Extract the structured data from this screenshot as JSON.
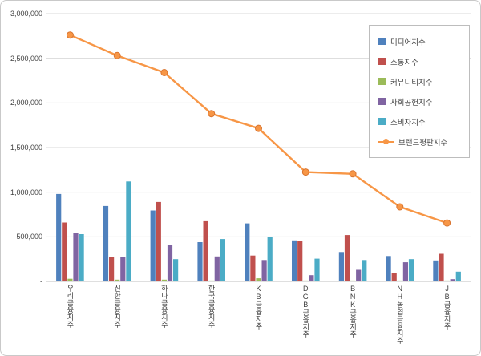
{
  "chart_data": {
    "type": "bar",
    "subtype": "clustered-bars-with-line-overlay",
    "title": "",
    "xlabel": "",
    "ylabel": "",
    "categories": [
      "우리금융지주",
      "신한금융지주",
      "하나금융지주",
      "한국금융지주",
      "KB금융지주",
      "DGB금융지주",
      "BNK금융지주",
      "NH농협금융지주",
      "JB금융지주"
    ],
    "bar_series": [
      {
        "key": "media",
        "name": "미디어지수",
        "color": "#4F81BD",
        "values": [
          980000,
          845000,
          795000,
          440000,
          650000,
          460000,
          330000,
          285000,
          235000
        ]
      },
      {
        "key": "communication",
        "name": "소통지수",
        "color": "#C0504D",
        "values": [
          660000,
          275000,
          890000,
          675000,
          290000,
          455000,
          520000,
          90000,
          310000
        ]
      },
      {
        "key": "community",
        "name": "커뮤니티지수",
        "color": "#9BBB59",
        "values": [
          30000,
          20000,
          20000,
          10000,
          35000,
          10000,
          10000,
          10000,
          10000
        ]
      },
      {
        "key": "social",
        "name": "사회공헌지수",
        "color": "#8064A2",
        "values": [
          545000,
          270000,
          405000,
          280000,
          240000,
          70000,
          130000,
          215000,
          25000
        ]
      },
      {
        "key": "consumer",
        "name": "소비자지수",
        "color": "#4BACC6",
        "values": [
          530000,
          1120000,
          250000,
          475000,
          500000,
          255000,
          240000,
          250000,
          110000
        ]
      }
    ],
    "line_series": {
      "key": "brand",
      "name": "브랜드평판지수",
      "color": "#F79646",
      "values": [
        2760000,
        2530000,
        2340000,
        1880000,
        1715000,
        1225000,
        1205000,
        835000,
        655000
      ]
    },
    "ylim": [
      0,
      3000000
    ],
    "yticks": [
      {
        "value": 0,
        "label": "-"
      },
      {
        "value": 500000,
        "label": "500,000"
      },
      {
        "value": 1000000,
        "label": "1,000,000"
      },
      {
        "value": 1500000,
        "label": "1,500,000"
      },
      {
        "value": 2000000,
        "label": "2,000,000"
      },
      {
        "value": 2500000,
        "label": "2,500,000"
      },
      {
        "value": 3000000,
        "label": "3,000,000"
      }
    ],
    "grid": true,
    "legend_position": "inside-top-right"
  }
}
